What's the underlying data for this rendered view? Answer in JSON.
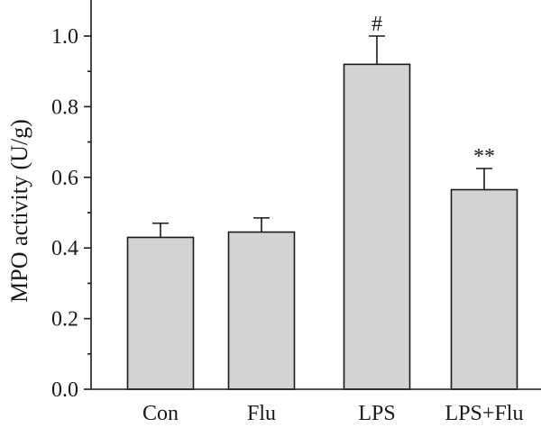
{
  "chart_data": {
    "type": "bar",
    "title": "",
    "xlabel": "",
    "ylabel": "MPO activity (U/g)",
    "ylim": [
      0.0,
      1.0
    ],
    "yticks": [
      "0.0",
      "0.2",
      "0.4",
      "0.6",
      "0.8",
      "1.0"
    ],
    "categories": [
      "Con",
      "Flu",
      "LPS",
      "LPS+Flu"
    ],
    "values": [
      0.43,
      0.445,
      0.92,
      0.565
    ],
    "errors": [
      0.04,
      0.04,
      0.08,
      0.06
    ],
    "annotations": [
      "",
      "",
      "#",
      "**"
    ],
    "bar_color": "#d3d3d3",
    "grid": false,
    "legend": false
  }
}
